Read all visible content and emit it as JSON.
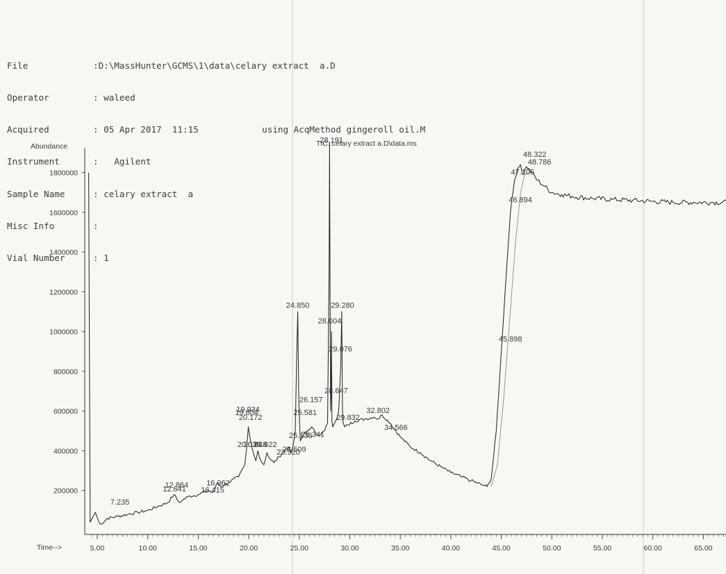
{
  "header": {
    "file": {
      "label": "File",
      "value": "D:\\MassHunter\\GCMS\\1\\data\\celary extract  a.D"
    },
    "operator": {
      "label": "Operator",
      "value": "waleed"
    },
    "acquired": {
      "label": "Acquired",
      "value": "05 Apr 2017  11:15",
      "method": "using AcqMethod gingeroll oil.M"
    },
    "instrument": {
      "label": "Instrument",
      "value": "  Agilent"
    },
    "sample_name": {
      "label": "Sample Name",
      "value": "celary extract  a"
    },
    "misc_info": {
      "label": "Misc Info",
      "value": ""
    },
    "vial_number": {
      "label": "Vial Number",
      "value": "1"
    }
  },
  "chart_data": {
    "type": "line",
    "title": "TIC: celary extract  a.D\\data.ms",
    "ylabel": "Abundance",
    "xlabel": "Time-->",
    "xlim": [
      4.0,
      67.5
    ],
    "ylim": [
      0,
      2000000
    ],
    "x_ticks": [
      "5.00",
      "10.00",
      "15.00",
      "20.00",
      "25.00",
      "30.00",
      "35.00",
      "40.00",
      "45.00",
      "50.00",
      "55.00",
      "60.00",
      "65.00"
    ],
    "y_ticks": [
      "200000",
      "400000",
      "600000",
      "800000",
      "1000000",
      "1200000",
      "1400000",
      "1600000",
      "1800000"
    ],
    "series": [
      {
        "x": [
          4.15,
          4.3,
          4.5,
          4.8,
          5.1,
          5.4,
          6.0,
          7.0,
          8.0,
          9.0,
          10.0,
          11.0,
          12.0,
          12.6,
          12.85,
          13.1,
          13.4,
          14.0,
          15.0,
          16.0,
          16.4,
          16.6,
          16.9,
          17.2,
          18.0,
          19.0,
          19.6,
          19.8,
          19.96,
          20.1,
          20.3,
          20.5,
          20.7,
          20.9,
          21.2,
          21.5,
          21.8,
          22.1,
          22.5,
          23.0,
          23.5,
          23.9,
          24.2,
          24.4,
          24.6,
          24.75,
          24.85,
          24.95,
          25.1,
          25.4,
          25.8,
          26.2,
          26.6,
          27.0,
          27.5,
          27.8,
          27.95,
          28.0,
          28.05,
          28.1,
          28.15,
          28.19,
          28.23,
          28.3,
          28.5,
          28.7,
          28.9,
          29.1,
          29.2,
          29.28,
          29.35,
          29.5,
          29.8,
          30.5,
          31.5,
          32.4,
          32.8,
          33.2,
          34.0,
          35.0,
          36.0,
          37.0,
          38.0,
          39.0,
          40.0,
          41.0,
          42.0,
          43.0,
          43.6,
          44.0,
          44.5,
          45.0,
          45.5,
          45.9,
          46.3,
          46.6,
          46.9,
          47.1,
          47.5,
          48.0,
          48.6,
          49.3,
          50.0,
          51.0,
          52.0,
          54.0,
          56.0,
          58.0,
          60.0,
          62.0,
          64.0,
          66.0,
          67.5
        ],
        "y": [
          1800000,
          40000,
          60000,
          90000,
          50000,
          30000,
          60000,
          70000,
          80000,
          90000,
          100000,
          120000,
          140000,
          180000,
          160000,
          140000,
          150000,
          170000,
          180000,
          200000,
          190000,
          200000,
          240000,
          220000,
          240000,
          270000,
          330000,
          420000,
          520000,
          470000,
          420000,
          380000,
          350000,
          400000,
          350000,
          330000,
          390000,
          360000,
          340000,
          370000,
          400000,
          420000,
          390000,
          430000,
          500000,
          900000,
          1100000,
          650000,
          450000,
          480000,
          500000,
          520000,
          490000,
          480000,
          500000,
          540000,
          1300000,
          1950000,
          1200000,
          600000,
          680000,
          1000000,
          550000,
          520000,
          540000,
          560000,
          600000,
          820000,
          1100000,
          600000,
          540000,
          520000,
          530000,
          550000,
          560000,
          570000,
          560000,
          580000,
          540000,
          470000,
          420000,
          390000,
          350000,
          320000,
          290000,
          270000,
          250000,
          230000,
          220000,
          260000,
          500000,
          900000,
          1300000,
          1600000,
          1760000,
          1820000,
          1840000,
          1790000,
          1830000,
          1800000,
          1760000,
          1730000,
          1700000,
          1690000,
          1680000,
          1670000,
          1665000,
          1660000,
          1655000,
          1650000,
          1650000,
          1650000,
          1650000
        ]
      }
    ],
    "peak_labels": [
      {
        "text": "7.235",
        "x": 7.24,
        "y": 130000
      },
      {
        "text": "12.641",
        "x": 12.64,
        "y": 195000
      },
      {
        "text": "12.864",
        "x": 12.86,
        "y": 215000
      },
      {
        "text": "16.415",
        "x": 16.42,
        "y": 190000
      },
      {
        "text": "16.962",
        "x": 16.96,
        "y": 225000
      },
      {
        "text": "19.934",
        "x": 19.93,
        "y": 595000
      },
      {
        "text": "19.804",
        "x": 19.8,
        "y": 580000
      },
      {
        "text": "20.172",
        "x": 20.17,
        "y": 555000
      },
      {
        "text": "20.036",
        "x": 20.04,
        "y": 420000
      },
      {
        "text": "20.648",
        "x": 20.65,
        "y": 420000
      },
      {
        "text": "21.622",
        "x": 21.62,
        "y": 420000
      },
      {
        "text": "23.920",
        "x": 23.92,
        "y": 380000
      },
      {
        "text": "24.509",
        "x": 24.51,
        "y": 395000
      },
      {
        "text": "24.850",
        "x": 24.85,
        "y": 1120000
      },
      {
        "text": "25.136",
        "x": 25.14,
        "y": 465000
      },
      {
        "text": "25.581",
        "x": 25.58,
        "y": 580000
      },
      {
        "text": "26.157",
        "x": 26.16,
        "y": 645000
      },
      {
        "text": "26.341",
        "x": 26.34,
        "y": 470000
      },
      {
        "text": "28.191",
        "x": 28.19,
        "y": 1950000
      },
      {
        "text": "28.004",
        "x": 28.0,
        "y": 1040000
      },
      {
        "text": "28.647",
        "x": 28.65,
        "y": 690000
      },
      {
        "text": "29.280",
        "x": 29.28,
        "y": 1120000
      },
      {
        "text": "29.076",
        "x": 29.08,
        "y": 900000
      },
      {
        "text": "29.832",
        "x": 29.83,
        "y": 555000
      },
      {
        "text": "32.802",
        "x": 32.8,
        "y": 590000
      },
      {
        "text": "34.566",
        "x": 34.57,
        "y": 505000
      },
      {
        "text": "45.898",
        "x": 45.9,
        "y": 950000
      },
      {
        "text": "46.894",
        "x": 46.89,
        "y": 1650000
      },
      {
        "text": "47.105",
        "x": 47.11,
        "y": 1790000
      },
      {
        "text": "48.322",
        "x": 48.32,
        "y": 1880000
      },
      {
        "text": "48.786",
        "x": 48.79,
        "y": 1840000
      }
    ]
  }
}
